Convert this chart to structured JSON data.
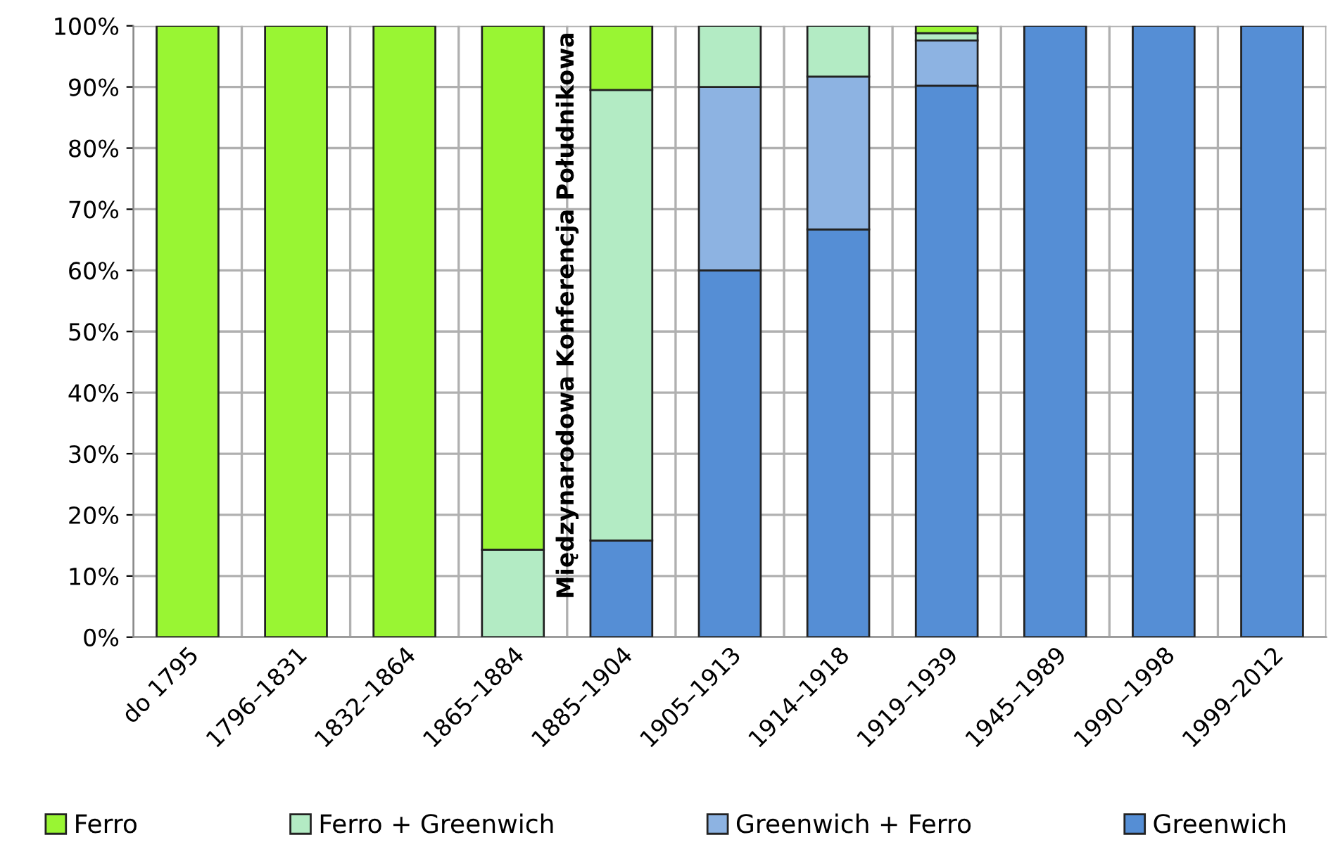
{
  "chart_data": {
    "type": "bar",
    "stacked": true,
    "categories": [
      "do 1795",
      "1796–1831",
      "1832–1864",
      "1865–1884",
      "1885–1904",
      "1905–1913",
      "1914–1918",
      "1919–1939",
      "1945–1989",
      "1990–1998",
      "1999–2012"
    ],
    "series": [
      {
        "name": "Greenwich",
        "color": "#558ed5",
        "values": [
          null,
          null,
          null,
          null,
          15.8,
          60,
          66.7,
          90.2,
          100,
          100,
          100
        ]
      },
      {
        "name": "Greenwich + Ferro",
        "color": "#8db3e2",
        "values": [
          null,
          null,
          null,
          null,
          null,
          30,
          25,
          7.4,
          null,
          null,
          null
        ]
      },
      {
        "name": "Ferro + Greenwich",
        "color": "#b3ebc4",
        "values": [
          null,
          null,
          null,
          14.3,
          73.7,
          10,
          8.3,
          1.2,
          null,
          null,
          null
        ]
      },
      {
        "name": "Ferro",
        "color": "#99f533",
        "values": [
          100,
          100,
          100,
          85.7,
          10.5,
          null,
          null,
          1.2,
          null,
          null,
          null
        ]
      }
    ],
    "ylim": [
      0,
      100
    ],
    "yticks": [
      {
        "value": 0,
        "label": "0%"
      },
      {
        "value": 10,
        "label": "10%"
      },
      {
        "value": 20,
        "label": "20%"
      },
      {
        "value": 30,
        "label": "30%"
      },
      {
        "value": 40,
        "label": "40%"
      },
      {
        "value": 50,
        "label": "50%"
      },
      {
        "value": 60,
        "label": "60%"
      },
      {
        "value": 70,
        "label": "70%"
      },
      {
        "value": 80,
        "label": "80%"
      },
      {
        "value": 90,
        "label": "90%"
      },
      {
        "value": 100,
        "label": "100%"
      }
    ],
    "annotations": [
      "Międzynarodowa Konferencja Południkowa"
    ],
    "grid": true,
    "legend": "bottom"
  }
}
